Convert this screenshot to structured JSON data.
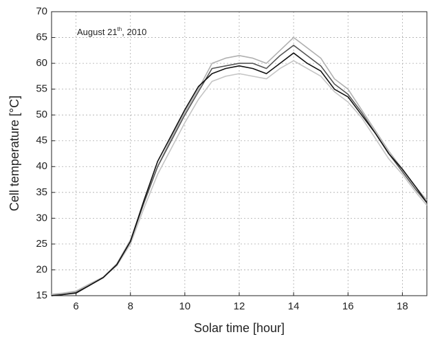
{
  "chart_data": {
    "type": "line",
    "x_label": "Solar time [hour]",
    "y_label": "Cell temperature  [°C]",
    "annotation": {
      "text": "August 21",
      "superscript": "th",
      "suffix": ", 2010"
    },
    "xlim": [
      5.1,
      18.9
    ],
    "xticks": [
      6,
      8,
      10,
      12,
      14,
      16,
      18
    ],
    "ylim": [
      15,
      70
    ],
    "yticks": [
      15,
      20,
      25,
      30,
      35,
      40,
      45,
      50,
      55,
      60,
      65,
      70
    ],
    "grid": true,
    "x": [
      5.1,
      5.5,
      6,
      6.5,
      7,
      7.5,
      8,
      8.5,
      9,
      9.5,
      10,
      10.5,
      11,
      11.5,
      12,
      12.5,
      13,
      13.5,
      14,
      14.5,
      15,
      15.5,
      16,
      16.5,
      17,
      17.5,
      18,
      18.5,
      18.9
    ],
    "series": [
      {
        "color": "#c4c4c4",
        "values": [
          15.3,
          15.5,
          15.9,
          17.3,
          18.6,
          20.8,
          25,
          32,
          38.5,
          43.5,
          48.5,
          53,
          56.5,
          57.5,
          58,
          57.5,
          57,
          59,
          60.5,
          59,
          57.5,
          54.5,
          52.5,
          49.5,
          45.5,
          41.5,
          38.5,
          35,
          32.5
        ]
      },
      {
        "color": "#b0b0b0",
        "values": [
          15.2,
          15.4,
          15.8,
          17.2,
          18.6,
          21.2,
          25.8,
          33.2,
          40,
          45.5,
          50.5,
          55,
          60,
          61,
          61.5,
          61,
          60,
          62.5,
          65,
          63,
          61,
          57,
          55,
          51,
          47,
          43,
          39.5,
          36,
          33.5
        ]
      },
      {
        "color": "#555555",
        "values": [
          15,
          15.2,
          15.6,
          17,
          18.5,
          21,
          25.5,
          33,
          40,
          45,
          50,
          54.5,
          59,
          59.5,
          60,
          60,
          59,
          61.5,
          63.5,
          61.5,
          59.5,
          56,
          54,
          50.5,
          46.5,
          42.5,
          39,
          35.5,
          33
        ]
      },
      {
        "color": "#111111",
        "values": [
          15,
          15.2,
          15.5,
          17,
          18.5,
          21,
          25.5,
          33.5,
          41,
          46,
          51,
          55.5,
          58,
          59,
          59.5,
          59,
          58,
          60,
          62,
          60,
          58.5,
          55,
          53.5,
          50,
          46.5,
          42.5,
          39.5,
          36,
          33
        ]
      }
    ]
  }
}
